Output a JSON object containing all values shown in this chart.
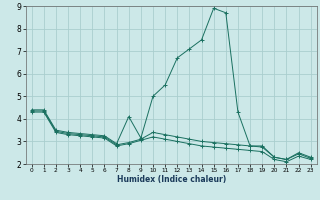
{
  "xlabel": "Humidex (Indice chaleur)",
  "ylabel": "",
  "background_color": "#cce8e8",
  "grid_color": "#aacece",
  "line_color": "#1a7060",
  "xlim": [
    -0.5,
    23.5
  ],
  "ylim": [
    2,
    9
  ],
  "yticks": [
    2,
    3,
    4,
    5,
    6,
    7,
    8,
    9
  ],
  "xticks": [
    0,
    1,
    2,
    3,
    4,
    5,
    6,
    7,
    8,
    9,
    10,
    11,
    12,
    13,
    14,
    15,
    16,
    17,
    18,
    19,
    20,
    21,
    22,
    23
  ],
  "series": [
    {
      "x": [
        0,
        1,
        2,
        3,
        4,
        5,
        6,
        7,
        8,
        9,
        10,
        11,
        12,
        13,
        14,
        15,
        16,
        17,
        18,
        19,
        20,
        21,
        22,
        23
      ],
      "y": [
        4.4,
        4.4,
        3.5,
        3.4,
        3.35,
        3.3,
        3.25,
        2.9,
        4.1,
        3.15,
        5.0,
        5.5,
        6.7,
        7.1,
        7.5,
        8.9,
        8.7,
        4.3,
        2.8,
        2.8,
        2.3,
        2.2,
        2.5,
        2.3
      ]
    },
    {
      "x": [
        0,
        1,
        2,
        3,
        4,
        5,
        6,
        7,
        8,
        9,
        10,
        11,
        12,
        13,
        14,
        15,
        16,
        17,
        18,
        19,
        20,
        21,
        22,
        23
      ],
      "y": [
        4.35,
        4.35,
        3.45,
        3.35,
        3.3,
        3.25,
        3.2,
        2.85,
        2.95,
        3.1,
        3.4,
        3.3,
        3.2,
        3.1,
        3.0,
        2.95,
        2.9,
        2.85,
        2.8,
        2.75,
        2.3,
        2.2,
        2.45,
        2.25
      ]
    },
    {
      "x": [
        0,
        1,
        2,
        3,
        4,
        5,
        6,
        7,
        8,
        9,
        10,
        11,
        12,
        13,
        14,
        15,
        16,
        17,
        18,
        19,
        20,
        21,
        22,
        23
      ],
      "y": [
        4.3,
        4.3,
        3.4,
        3.3,
        3.25,
        3.2,
        3.15,
        2.8,
        2.9,
        3.05,
        3.2,
        3.1,
        3.0,
        2.9,
        2.8,
        2.75,
        2.7,
        2.65,
        2.6,
        2.55,
        2.2,
        2.1,
        2.35,
        2.2
      ]
    }
  ]
}
